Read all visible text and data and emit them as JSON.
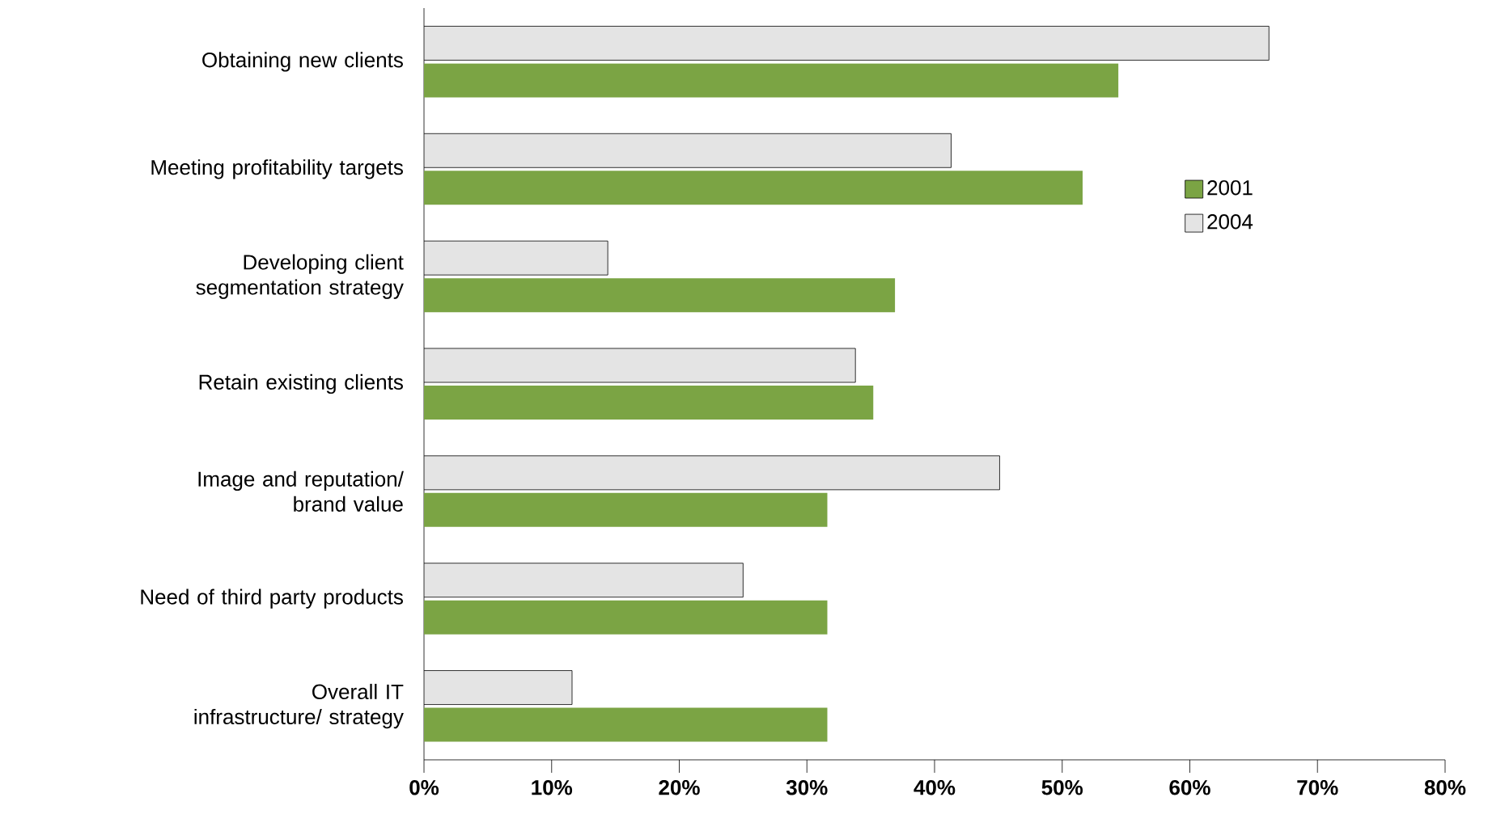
{
  "chart_data": {
    "type": "bar",
    "orientation": "horizontal",
    "categories": [
      "Obtaining new clients",
      "Meeting profitability targets",
      "Developing client segmentation strategy",
      "Retain existing clients",
      "Image and reputation/ brand value",
      "Need of third party products",
      "Overall IT infrastructure/ strategy"
    ],
    "series": [
      {
        "name": "2001",
        "color": "#7ba444",
        "values": [
          54.4,
          51.6,
          36.9,
          35.2,
          31.6,
          31.6,
          31.6
        ]
      },
      {
        "name": "2004",
        "color": "#e4e4e4",
        "values": [
          66.2,
          41.3,
          14.4,
          33.8,
          45.1,
          25.0,
          11.6
        ]
      }
    ],
    "xlim": [
      0,
      80
    ],
    "xticks": [
      {
        "value": 0,
        "label": "0%"
      },
      {
        "value": 10,
        "label": "10%"
      },
      {
        "value": 20,
        "label": "20%"
      },
      {
        "value": 30,
        "label": "30%"
      },
      {
        "value": 40,
        "label": "40%"
      },
      {
        "value": 50,
        "label": "50%"
      },
      {
        "value": 60,
        "label": "60%"
      },
      {
        "value": 70,
        "label": "70%"
      },
      {
        "value": 80,
        "label": "80%"
      }
    ],
    "legend": "top right",
    "grid": false
  }
}
